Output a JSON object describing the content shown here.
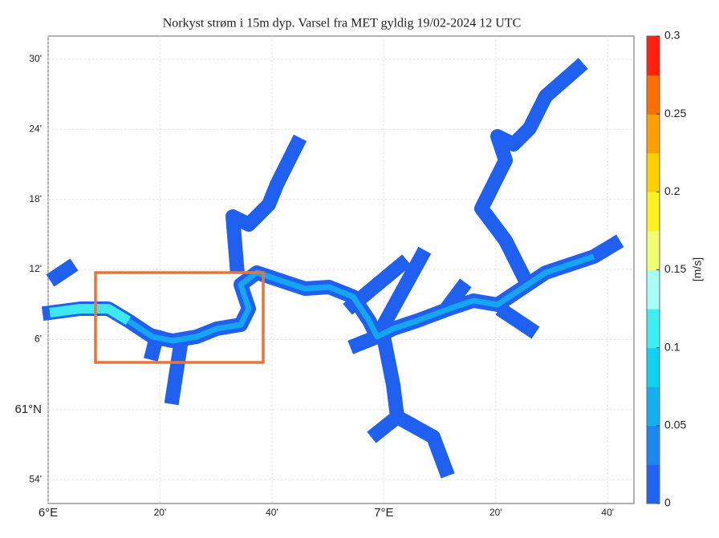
{
  "title": "Norkyst strøm i 15m dyp. Varsel fra MET gyldig 19/02-2024 12 UTC",
  "map": {
    "latlim": [
      60.866,
      61.533
    ],
    "lonlim": [
      6.0,
      7.745
    ],
    "lat_ticks": [
      {
        "value": 61.5,
        "label": "30'"
      },
      {
        "value": 61.4,
        "label": "24'"
      },
      {
        "value": 61.3,
        "label": "18'"
      },
      {
        "value": 61.2,
        "label": "12'"
      },
      {
        "value": 61.1,
        "label": "6'"
      },
      {
        "value": 61.0,
        "label": "61°N"
      },
      {
        "value": 60.9,
        "label": "54'"
      }
    ],
    "lon_ticks": [
      {
        "value": 6.0,
        "label": "6°E"
      },
      {
        "value": 6.3333,
        "label": "20'"
      },
      {
        "value": 6.6667,
        "label": "40'"
      },
      {
        "value": 7.0,
        "label": "7°E"
      },
      {
        "value": 7.3333,
        "label": "20'"
      },
      {
        "value": 7.6667,
        "label": "40'"
      }
    ],
    "grid": true
  },
  "colorbar": {
    "label": "[m/s]",
    "lim": [
      0,
      0.3
    ],
    "ticks": [
      0,
      0.05,
      0.1,
      0.15,
      0.2,
      0.25,
      0.3
    ],
    "colors": [
      "#2163f2",
      "#1c86f2",
      "#12b0f0",
      "#0fd2f0",
      "#3eeff2",
      "#a8fff6",
      "#eeff70",
      "#fff020",
      "#ffd000",
      "#ffa000",
      "#ff6e00",
      "#ff2010"
    ]
  }
}
